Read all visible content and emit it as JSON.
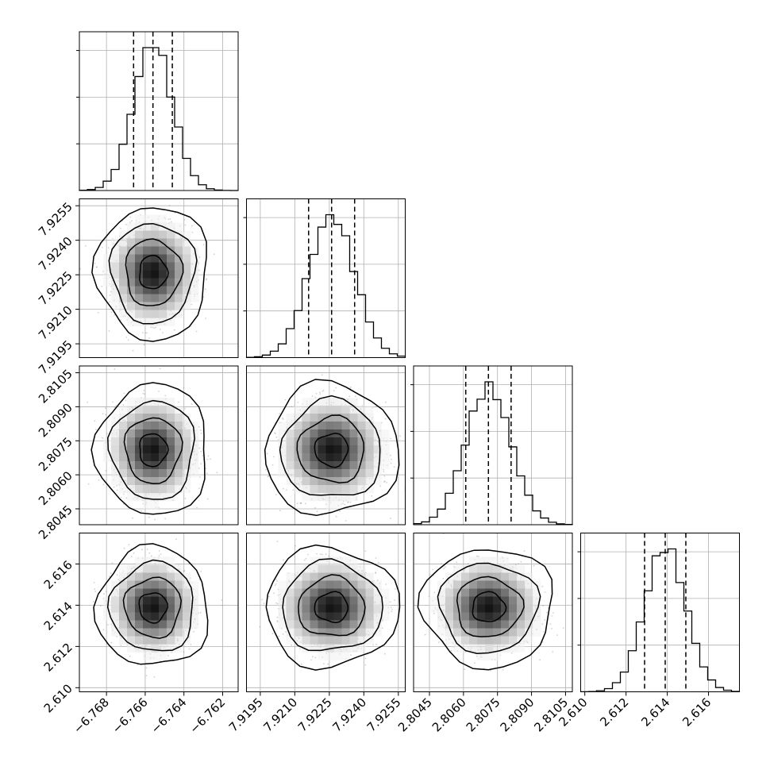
{
  "chart_data": {
    "type": "corner",
    "title": "",
    "grid": true,
    "parameters": [
      {
        "label": "",
        "mean": -6.7656,
        "sigma": 0.001,
        "range": [
          -6.7694,
          -6.7612
        ],
        "ticks": [
          -6.768,
          -6.766,
          -6.764,
          -6.762
        ],
        "tick_labels": [
          "−6.768",
          "−6.766",
          "−6.764",
          "−6.762"
        ]
      },
      {
        "label": "",
        "mean": 7.9226,
        "sigma": 0.001,
        "range": [
          7.9189,
          7.9258
        ],
        "ticks": [
          7.9195,
          7.921,
          7.9225,
          7.924,
          7.9255
        ],
        "tick_labels": [
          "7.9195",
          "7.9210",
          "7.9225",
          "7.9240",
          "7.9255"
        ]
      },
      {
        "label": "",
        "mean": 2.8071,
        "sigma": 0.001,
        "range": [
          2.8038,
          2.8108
        ],
        "ticks": [
          2.8045,
          2.806,
          2.8075,
          2.809,
          2.8105
        ],
        "tick_labels": [
          "2.8045",
          "2.8060",
          "2.8075",
          "2.8090",
          "2.8105"
        ]
      },
      {
        "label": "",
        "mean": 2.6139,
        "sigma": 0.001,
        "range": [
          2.6098,
          2.6175
        ],
        "ticks": [
          2.61,
          2.612,
          2.614,
          2.616
        ],
        "tick_labels": [
          "2.610",
          "2.612",
          "2.614",
          "2.616"
        ]
      }
    ],
    "quantiles": [
      0.16,
      0.5,
      0.84
    ],
    "quantile_values": [
      [
        -6.7666,
        -6.7656,
        -6.7646
      ],
      [
        7.9216,
        7.9226,
        7.9236
      ],
      [
        2.8061,
        2.8071,
        2.8081
      ],
      [
        2.6129,
        2.6139,
        2.6149
      ]
    ],
    "histogram_bins": 20,
    "contour_levels_sigma": [
      0.5,
      1.0,
      1.5,
      2.0
    ],
    "colors": {
      "line": "#000000",
      "grid": "#b0b0b0",
      "points": "#9a9a9a"
    }
  }
}
